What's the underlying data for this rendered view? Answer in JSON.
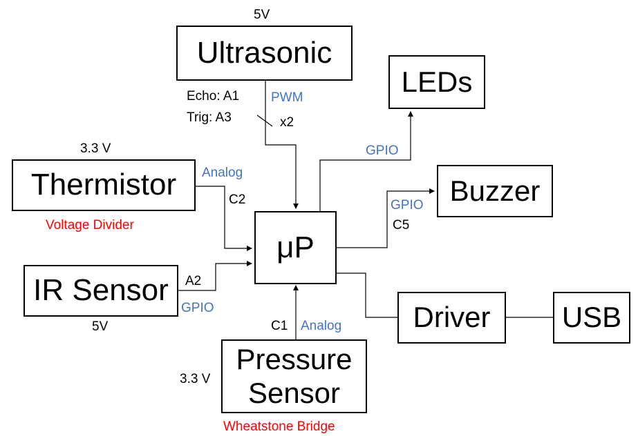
{
  "blocks": {
    "ultrasonic": "Ultrasonic",
    "leds": "LEDs",
    "thermistor": "Thermistor",
    "buzzer": "Buzzer",
    "microcontroller": "μP",
    "ir_sensor": "IR Sensor",
    "driver": "Driver",
    "usb": "USB",
    "pressure_sensor_line1": "Pressure",
    "pressure_sensor_line2": "Sensor"
  },
  "labels": {
    "ultrasonic_voltage": "5V",
    "echo_pin": "Echo: A1",
    "trig_pin": "Trig: A3",
    "ultrasonic_signal": "PWM",
    "ultrasonic_multiplier": "x2",
    "thermistor_voltage": "3.3 V",
    "thermistor_signal": "Analog",
    "thermistor_pin": "C2",
    "thermistor_note": "Voltage Divider",
    "leds_signal": "GPIO",
    "buzzer_signal": "GPIO",
    "buzzer_pin": "C5",
    "ir_pin": "A2",
    "ir_signal": "GPIO",
    "ir_voltage": "5V",
    "pressure_pin": "C1",
    "pressure_signal": "Analog",
    "pressure_voltage": "3.3 V",
    "pressure_note": "Wheatstone Bridge"
  },
  "colors": {
    "signal_label": "#4472c4",
    "note_label": "#ff0000",
    "line": "#000000"
  }
}
